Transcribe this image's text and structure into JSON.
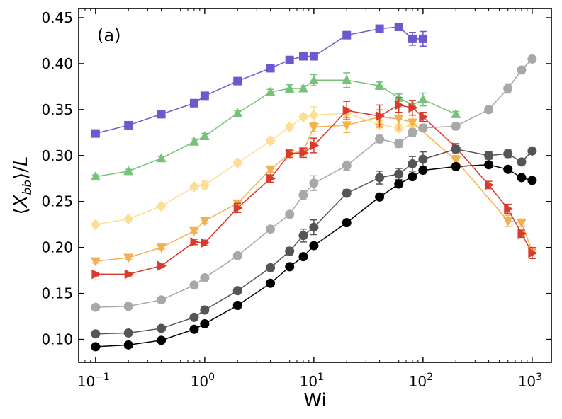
{
  "chart_data": {
    "type": "scatter",
    "panel_label": "(a)",
    "xlabel": "Wi",
    "ylabel": "⟨X_bb⟩/L",
    "xscale": "log",
    "xlim": [
      0.07,
      1500
    ],
    "ylim": [
      0.075,
      0.46
    ],
    "x_tick_labels": [
      "10^-1",
      "10^0",
      "10^1",
      "10^2",
      "10^3"
    ],
    "y_ticks": [
      "0.10",
      "0.15",
      "0.20",
      "0.25",
      "0.30",
      "0.35",
      "0.40",
      "0.45"
    ],
    "grid": false,
    "series": [
      {
        "color": "#6a5acd",
        "marker": "square",
        "x": [
          0.1,
          0.2,
          0.4,
          0.8,
          1,
          2,
          4,
          6,
          8,
          10,
          20,
          40,
          60,
          80,
          100
        ],
        "y": [
          0.324,
          0.333,
          0.345,
          0.357,
          0.365,
          0.381,
          0.395,
          0.404,
          0.408,
          0.408,
          0.431,
          0.438,
          0.44,
          0.427,
          0.427
        ],
        "err": [
          0.002,
          0.002,
          0.002,
          0.002,
          0.002,
          0.002,
          0.002,
          0.002,
          0.002,
          0.002,
          0.002,
          0.003,
          0.003,
          0.007,
          0.008
        ]
      },
      {
        "color": "#77c27a",
        "marker": "triangle-up",
        "x": [
          0.1,
          0.2,
          0.4,
          0.8,
          1,
          2,
          4,
          6,
          8,
          10,
          20,
          40,
          60,
          80,
          100,
          200
        ],
        "y": [
          0.277,
          0.283,
          0.297,
          0.315,
          0.321,
          0.346,
          0.369,
          0.373,
          0.373,
          0.382,
          0.382,
          0.376,
          0.363,
          0.355,
          0.361,
          0.345
        ],
        "err": [
          0.002,
          0.002,
          0.002,
          0.003,
          0.003,
          0.003,
          0.003,
          0.004,
          0.003,
          0.006,
          0.008,
          0.004,
          0.004,
          0.005,
          0.007,
          0.003
        ]
      },
      {
        "color": "#fcdf93",
        "marker": "diamond",
        "x": [
          0.1,
          0.2,
          0.4,
          0.8,
          1,
          2,
          4,
          6,
          8,
          10,
          20,
          40,
          60,
          80
        ],
        "y": [
          0.225,
          0.231,
          0.245,
          0.266,
          0.268,
          0.292,
          0.316,
          0.331,
          0.342,
          0.344,
          0.346,
          0.334,
          0.33,
          0.333
        ],
        "err": [
          0.002,
          0.002,
          0.002,
          0.003,
          0.004,
          0.003,
          0.003,
          0.003,
          0.003,
          0.009,
          0.005,
          0.004,
          0.004,
          0.004
        ]
      },
      {
        "color": "#f5b04e",
        "marker": "triangle-down",
        "x": [
          0.1,
          0.2,
          0.4,
          0.8,
          1,
          2,
          4,
          6,
          8,
          10,
          20,
          40,
          60,
          80,
          200,
          600,
          800,
          1000
        ],
        "y": [
          0.185,
          0.189,
          0.2,
          0.218,
          0.229,
          0.248,
          0.285,
          0.302,
          0.305,
          0.331,
          0.333,
          0.342,
          0.34,
          0.336,
          0.295,
          0.229,
          0.227,
          0.196
        ],
        "err": [
          0.002,
          0.002,
          0.002,
          0.002,
          0.003,
          0.003,
          0.003,
          0.004,
          0.004,
          0.005,
          0.008,
          0.008,
          0.012,
          0.008,
          0.005,
          0.006,
          0.004,
          0.003
        ]
      },
      {
        "color": "#d93a2b",
        "marker": "triangle-right",
        "x": [
          0.1,
          0.2,
          0.4,
          0.8,
          1,
          2,
          4,
          6,
          8,
          10,
          20,
          40,
          60,
          80,
          100,
          200,
          400,
          600,
          800,
          1000
        ],
        "y": [
          0.171,
          0.171,
          0.18,
          0.206,
          0.205,
          0.243,
          0.275,
          0.302,
          0.303,
          0.311,
          0.349,
          0.343,
          0.355,
          0.352,
          0.342,
          0.309,
          0.268,
          0.242,
          0.215,
          0.194
        ],
        "err": [
          0.002,
          0.002,
          0.002,
          0.003,
          0.003,
          0.005,
          0.004,
          0.004,
          0.005,
          0.008,
          0.01,
          0.012,
          0.008,
          0.008,
          0.005,
          0.004,
          0.004,
          0.005,
          0.004,
          0.006
        ]
      },
      {
        "color": "#a8a8a8",
        "marker": "circle",
        "x": [
          0.1,
          0.2,
          0.4,
          0.8,
          1,
          2,
          4,
          6,
          8,
          10,
          20,
          40,
          60,
          80,
          100,
          200,
          400,
          600,
          800,
          1000
        ],
        "y": [
          0.135,
          0.136,
          0.143,
          0.159,
          0.167,
          0.191,
          0.22,
          0.236,
          0.257,
          0.27,
          0.289,
          0.318,
          0.313,
          0.325,
          0.33,
          0.332,
          0.35,
          0.373,
          0.393,
          0.405
        ],
        "err": [
          0.002,
          0.002,
          0.002,
          0.002,
          0.002,
          0.002,
          0.002,
          0.002,
          0.005,
          0.008,
          0.005,
          0.004,
          0.004,
          0.004,
          0.004,
          0.004,
          0.003,
          0.005,
          0.003,
          0.002
        ]
      },
      {
        "color": "#555555",
        "marker": "circle",
        "x": [
          0.1,
          0.2,
          0.4,
          0.8,
          1,
          2,
          4,
          6,
          8,
          10,
          20,
          40,
          60,
          80,
          100,
          200,
          400,
          600,
          800,
          1000
        ],
        "y": [
          0.106,
          0.107,
          0.112,
          0.124,
          0.132,
          0.153,
          0.178,
          0.196,
          0.213,
          0.222,
          0.259,
          0.276,
          0.28,
          0.291,
          0.296,
          0.307,
          0.3,
          0.302,
          0.293,
          0.305
        ],
        "err": [
          0.002,
          0.002,
          0.002,
          0.002,
          0.003,
          0.002,
          0.002,
          0.004,
          0.007,
          0.008,
          0.004,
          0.007,
          0.006,
          0.008,
          0.008,
          0.004,
          0.004,
          0.004,
          0.003,
          0.002
        ]
      },
      {
        "color": "#000000",
        "marker": "circle",
        "x": [
          0.1,
          0.2,
          0.4,
          0.8,
          1,
          2,
          4,
          6,
          8,
          10,
          20,
          40,
          60,
          80,
          100,
          200,
          400,
          600,
          800,
          1000
        ],
        "y": [
          0.092,
          0.094,
          0.099,
          0.111,
          0.117,
          0.137,
          0.161,
          0.179,
          0.19,
          0.202,
          0.227,
          0.255,
          0.269,
          0.277,
          0.284,
          0.288,
          0.29,
          0.285,
          0.276,
          0.273
        ],
        "err": [
          0.002,
          0.002,
          0.002,
          0.002,
          0.002,
          0.002,
          0.002,
          0.002,
          0.002,
          0.002,
          0.002,
          0.002,
          0.002,
          0.002,
          0.002,
          0.002,
          0.002,
          0.002,
          0.002,
          0.002
        ]
      }
    ]
  }
}
